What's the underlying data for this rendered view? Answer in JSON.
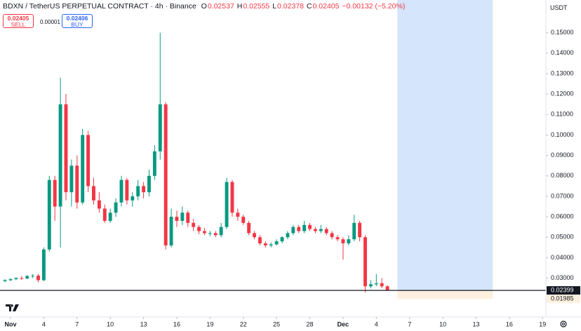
{
  "header": {
    "symbol": "BDXN / TetherUS PERPETUAL CONTRACT · 4h · Binance",
    "ohlc": [
      {
        "label": "O",
        "value": "0.02537"
      },
      {
        "label": "H",
        "value": "0.02555"
      },
      {
        "label": "L",
        "value": "0.02378"
      },
      {
        "label": "C",
        "value": "0.02405"
      }
    ],
    "change": "−0.00132 (−5.20%)",
    "sell": {
      "price": "0.02405",
      "label": "SELL"
    },
    "spread": "0.00001",
    "buy": {
      "price": "0.02406",
      "label": "BUY"
    },
    "currency": "USDT"
  },
  "chart_data": {
    "type": "candlestick",
    "up_color": "#089981",
    "down_color": "#f23645",
    "x": [
      -0.5,
      0,
      0.5,
      1,
      1.5,
      2,
      2.5,
      3,
      3.5,
      4,
      4.5,
      5,
      5.5,
      6,
      6.5,
      7,
      7.5,
      8,
      8.5,
      9,
      9.5,
      10,
      10.5,
      11,
      11.5,
      12,
      12.5,
      13,
      13.5,
      14,
      14.5,
      15,
      15.5,
      16,
      16.5,
      17,
      17.5,
      18,
      18.5,
      19,
      19.5,
      20,
      20.5,
      21,
      21.5,
      22,
      22.5,
      23,
      23.5,
      24,
      24.5,
      25,
      25.5,
      26,
      26.5,
      27,
      27.5,
      28,
      28.5,
      29,
      29.5,
      30,
      30.5,
      31,
      31.5,
      32,
      32.5,
      33,
      33.5,
      34
    ],
    "open": [
      0.0285,
      0.029,
      0.0295,
      0.03,
      0.0298,
      0.031,
      0.0312,
      0.029,
      0.044,
      0.078,
      0.065,
      0.115,
      0.072,
      0.085,
      0.067,
      0.1,
      0.075,
      0.068,
      0.064,
      0.058,
      0.062,
      0.067,
      0.078,
      0.068,
      0.07,
      0.075,
      0.072,
      0.08,
      0.092,
      0.115,
      0.046,
      0.06,
      0.058,
      0.062,
      0.057,
      0.055,
      0.053,
      0.052,
      0.052,
      0.051,
      0.055,
      0.077,
      0.062,
      0.06,
      0.057,
      0.052,
      0.05,
      0.047,
      0.046,
      0.0465,
      0.048,
      0.05,
      0.052,
      0.055,
      0.053,
      0.056,
      0.054,
      0.053,
      0.054,
      0.052,
      0.05,
      0.049,
      0.047,
      0.049,
      0.057,
      0.05,
      0.026,
      0.027,
      0.0275,
      0.026
    ],
    "high": [
      0.0295,
      0.03,
      0.0305,
      0.031,
      0.0315,
      0.032,
      0.032,
      0.045,
      0.08,
      0.08,
      0.128,
      0.12,
      0.088,
      0.09,
      0.103,
      0.102,
      0.079,
      0.072,
      0.066,
      0.064,
      0.069,
      0.08,
      0.079,
      0.072,
      0.078,
      0.077,
      0.083,
      0.095,
      0.15,
      0.116,
      0.064,
      0.063,
      0.065,
      0.063,
      0.059,
      0.056,
      0.0545,
      0.053,
      0.053,
      0.057,
      0.079,
      0.078,
      0.064,
      0.061,
      0.058,
      0.053,
      0.051,
      0.048,
      0.0475,
      0.049,
      0.0505,
      0.053,
      0.056,
      0.056,
      0.058,
      0.057,
      0.055,
      0.056,
      0.055,
      0.053,
      0.051,
      0.05,
      0.051,
      0.061,
      0.058,
      0.051,
      0.029,
      0.032,
      0.03,
      0.0265
    ],
    "low": [
      0.028,
      0.0285,
      0.029,
      0.0292,
      0.0295,
      0.03,
      0.028,
      0.0285,
      0.043,
      0.058,
      0.045,
      0.068,
      0.065,
      0.064,
      0.066,
      0.072,
      0.066,
      0.062,
      0.057,
      0.057,
      0.06,
      0.065,
      0.066,
      0.065,
      0.068,
      0.069,
      0.07,
      0.078,
      0.088,
      0.044,
      0.045,
      0.055,
      0.056,
      0.055,
      0.053,
      0.0515,
      0.051,
      0.0505,
      0.05,
      0.05,
      0.054,
      0.06,
      0.058,
      0.056,
      0.051,
      0.049,
      0.046,
      0.045,
      0.045,
      0.046,
      0.047,
      0.049,
      0.051,
      0.052,
      0.052,
      0.053,
      0.052,
      0.052,
      0.051,
      0.049,
      0.048,
      0.039,
      0.046,
      0.048,
      0.048,
      0.023,
      0.025,
      0.026,
      0.025,
      0.0238
    ],
    "close": [
      0.029,
      0.0295,
      0.03,
      0.0298,
      0.031,
      0.0312,
      0.029,
      0.044,
      0.078,
      0.065,
      0.115,
      0.072,
      0.085,
      0.067,
      0.1,
      0.075,
      0.068,
      0.064,
      0.058,
      0.062,
      0.067,
      0.078,
      0.068,
      0.07,
      0.075,
      0.072,
      0.08,
      0.092,
      0.115,
      0.046,
      0.06,
      0.058,
      0.062,
      0.057,
      0.055,
      0.053,
      0.052,
      0.052,
      0.051,
      0.055,
      0.077,
      0.062,
      0.06,
      0.057,
      0.052,
      0.05,
      0.047,
      0.046,
      0.0465,
      0.048,
      0.05,
      0.052,
      0.055,
      0.053,
      0.056,
      0.054,
      0.053,
      0.054,
      0.052,
      0.05,
      0.049,
      0.047,
      0.049,
      0.057,
      0.05,
      0.026,
      0.027,
      0.0275,
      0.026,
      0.024
    ],
    "xlim": [
      -0.95,
      48.3
    ],
    "xticks": [
      {
        "value": 0,
        "label": "Nov"
      },
      {
        "value": 3,
        "label": "4"
      },
      {
        "value": 6,
        "label": "7"
      },
      {
        "value": 9,
        "label": "10"
      },
      {
        "value": 12,
        "label": "13"
      },
      {
        "value": 15,
        "label": "16"
      },
      {
        "value": 18,
        "label": "19"
      },
      {
        "value": 21,
        "label": "22"
      },
      {
        "value": 24,
        "label": "25"
      },
      {
        "value": 27,
        "label": "28"
      },
      {
        "value": 30,
        "label": "Dec"
      },
      {
        "value": 33,
        "label": "4"
      },
      {
        "value": 36,
        "label": "7"
      },
      {
        "value": 39,
        "label": "10"
      },
      {
        "value": 42,
        "label": "13"
      },
      {
        "value": 45,
        "label": "16"
      },
      {
        "value": 48,
        "label": "19"
      }
    ],
    "ylim": [
      0.011,
      0.166
    ],
    "yticks": [
      {
        "value": 0.03,
        "label": "0.03000"
      },
      {
        "value": 0.04,
        "label": "0.04000"
      },
      {
        "value": 0.05,
        "label": "0.05000"
      },
      {
        "value": 0.06,
        "label": "0.06000"
      },
      {
        "value": 0.07,
        "label": "0.07000"
      },
      {
        "value": 0.08,
        "label": "0.08000"
      },
      {
        "value": 0.09,
        "label": "0.09000"
      },
      {
        "value": 0.1,
        "label": "0.10000"
      },
      {
        "value": 0.11,
        "label": "0.11000"
      },
      {
        "value": 0.12,
        "label": "0.12000"
      },
      {
        "value": 0.13,
        "label": "0.13000"
      },
      {
        "value": 0.14,
        "label": "0.14000"
      },
      {
        "value": 0.15,
        "label": "0.15000"
      }
    ],
    "last_price": 0.02399,
    "range": {
      "xlim": [
        34.9,
        43.5
      ],
      "ylim": [
        0.01985,
        0.02399
      ]
    },
    "grid": false
  }
}
